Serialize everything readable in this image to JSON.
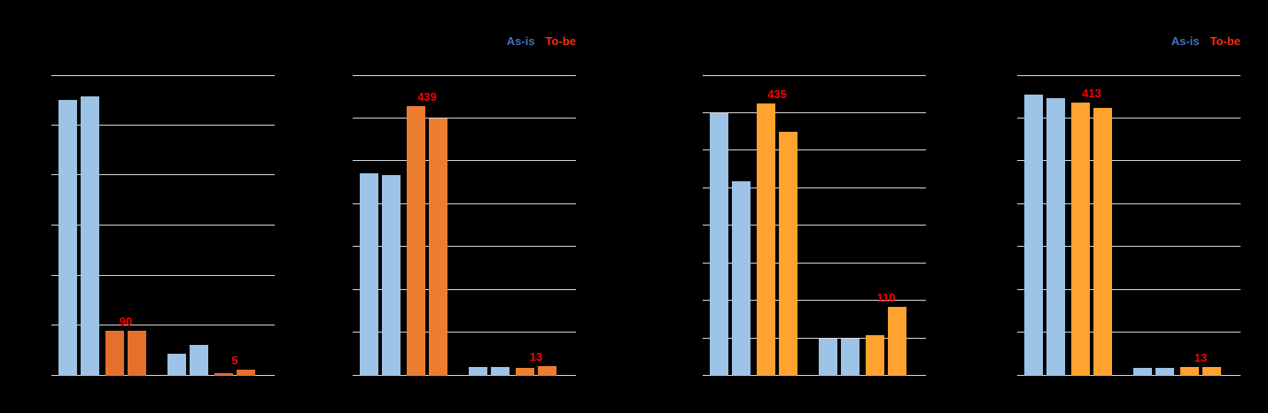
{
  "background": "#000000",
  "grid_color": "#D9D9D9",
  "axis_color": "#D9D9D9",
  "label_color": "#FF0000",
  "legend": {
    "as_is_label": "As-is",
    "to_be_label": "To-be",
    "as_is_color": "#4472C4",
    "to_be_color": "#FF2D0E"
  },
  "chart_data": [
    {
      "type": "bar",
      "title": "",
      "xlabel": "",
      "ylabel": "",
      "ylim": [
        0,
        600
      ],
      "grid_intervals": 6,
      "grid": true,
      "series_names": [
        "As-is",
        "To-be"
      ],
      "as_is_color": "#9DC3E6",
      "to_be_color": "#E4702B",
      "groups": [
        {
          "as_is": [
            550,
            558
          ],
          "to_be": [
            90,
            90
          ],
          "to_be_label": "90"
        },
        {
          "as_is": [
            45,
            62
          ],
          "to_be": [
            5,
            12
          ],
          "to_be_label": "5"
        }
      ]
    },
    {
      "type": "bar",
      "title": "",
      "xlabel": "",
      "ylabel": "",
      "ylim": [
        0,
        490
      ],
      "grid_intervals": 7,
      "grid": true,
      "series_names": [
        "As-is",
        "To-be"
      ],
      "as_is_color": "#9DC3E6",
      "to_be_color": "#ED7D31",
      "groups": [
        {
          "as_is": [
            330,
            327
          ],
          "to_be": [
            439,
            420
          ],
          "to_be_label": "439"
        },
        {
          "as_is": [
            14,
            14
          ],
          "to_be": [
            13,
            16
          ],
          "to_be_label": "13"
        }
      ]
    },
    {
      "type": "bar",
      "title": "",
      "xlabel": "",
      "ylabel": "",
      "ylim": [
        0,
        480
      ],
      "grid_intervals": 8,
      "grid": true,
      "series_names": [
        "As-is",
        "To-be"
      ],
      "as_is_color": "#9DC3E6",
      "to_be_color": "#FFA22F",
      "groups": [
        {
          "as_is": [
            420,
            310
          ],
          "to_be": [
            435,
            390
          ],
          "to_be_label": "435"
        },
        {
          "as_is": [
            60,
            60
          ],
          "to_be": [
            65,
            110
          ],
          "to_be_label": "110"
        }
      ]
    },
    {
      "type": "bar",
      "title": "",
      "xlabel": "",
      "ylabel": "",
      "ylim": [
        0,
        455
      ],
      "grid_intervals": 7,
      "grid": true,
      "series_names": [
        "As-is",
        "To-be"
      ],
      "as_is_color": "#9DC3E6",
      "to_be_color": "#FFA22F",
      "groups": [
        {
          "as_is": [
            425,
            420
          ],
          "to_be": [
            413,
            405
          ],
          "to_be_label": "413"
        },
        {
          "as_is": [
            12,
            12
          ],
          "to_be": [
            13,
            13
          ],
          "to_be_label": "13"
        }
      ]
    }
  ]
}
